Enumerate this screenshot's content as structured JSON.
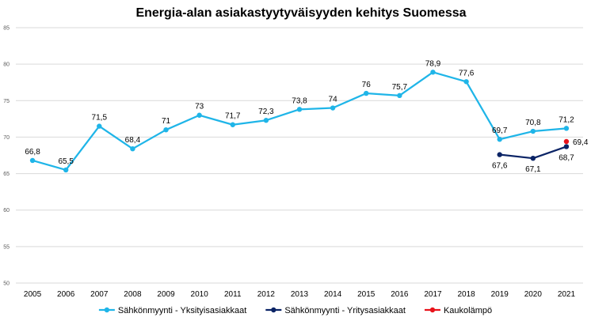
{
  "chart_data": {
    "type": "line",
    "title": "Energia-alan asiakastyytyväisyyden kehitys Suomessa",
    "xlabel": "",
    "ylabel": "",
    "ylim": [
      50,
      85
    ],
    "yticks": [
      50,
      55,
      60,
      65,
      70,
      75,
      80,
      85
    ],
    "grid": true,
    "legend_position": "bottom",
    "categories": [
      "2005",
      "2006",
      "2007",
      "2008",
      "2009",
      "2010",
      "2011",
      "2012",
      "2013",
      "2014",
      "2015",
      "2016",
      "2017",
      "2018",
      "2019",
      "2020",
      "2021"
    ],
    "series": [
      {
        "name": "Sähkönmyynti - Yksityisasiakkaat",
        "color": "#1fb5e8",
        "values": [
          66.8,
          65.5,
          71.5,
          68.4,
          71,
          73,
          71.7,
          72.3,
          73.8,
          74,
          76,
          75.7,
          78.9,
          77.6,
          69.7,
          70.8,
          71.2
        ],
        "labels": [
          "66,8",
          "65,5",
          "71,5",
          "68,4",
          "71",
          "73",
          "71,7",
          "72,3",
          "73,8",
          "74",
          "76",
          "75,7",
          "78,9",
          "77,6",
          "69,7",
          "70,8",
          "71,2"
        ]
      },
      {
        "name": "Sähkönmyynti - Yritysasiakkaat",
        "color": "#0b2466",
        "values": [
          null,
          null,
          null,
          null,
          null,
          null,
          null,
          null,
          null,
          null,
          null,
          null,
          null,
          null,
          67.6,
          67.1,
          68.7
        ],
        "labels": [
          null,
          null,
          null,
          null,
          null,
          null,
          null,
          null,
          null,
          null,
          null,
          null,
          null,
          null,
          "67,6",
          "67,1",
          "68,7"
        ]
      },
      {
        "name": "Kaukolämpö",
        "color": "#e8131b",
        "values": [
          null,
          null,
          null,
          null,
          null,
          null,
          null,
          null,
          null,
          null,
          null,
          null,
          null,
          null,
          null,
          null,
          69.4
        ],
        "labels": [
          null,
          null,
          null,
          null,
          null,
          null,
          null,
          null,
          null,
          null,
          null,
          null,
          null,
          null,
          null,
          null,
          "69,4"
        ]
      }
    ]
  }
}
